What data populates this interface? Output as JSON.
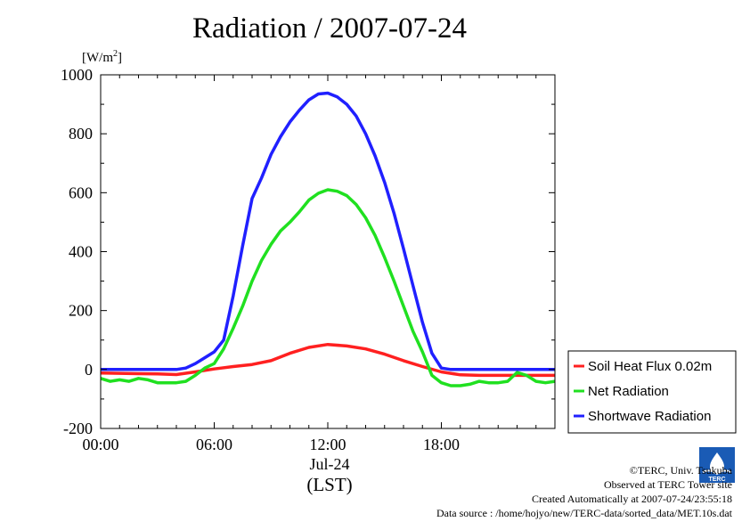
{
  "title": "Radiation / 2007-07-24",
  "unit_label": {
    "base": "[W/m",
    "sup": "2",
    "close": "]"
  },
  "date_label": "Jul-24",
  "time_zone_label": "(LST)",
  "footer": {
    "copyright": "©TERC, Univ. Tsukuba",
    "site": "Observed at TERC Tower site",
    "created": "Created Automatically at 2007-07-24/23:55:18",
    "source": "Data source : /home/hojyo/new/TERC-data/sorted_data/MET.10s.dat"
  },
  "logo_text": "TERC",
  "chart_data": {
    "type": "line",
    "title": "Radiation / 2007-07-24",
    "ylabel": "[W/m2]",
    "xlabel": "(LST)",
    "x_unit": "hours",
    "xlim": [
      0,
      24
    ],
    "ylim": [
      -200,
      1000
    ],
    "yticks": [
      1000,
      800,
      600,
      400,
      200,
      0,
      -200
    ],
    "ytick_labels": [
      "1000",
      "800",
      "600",
      "400",
      "200",
      "0",
      "-200"
    ],
    "xticks": [
      0,
      6,
      12,
      18
    ],
    "xtick_labels": [
      "00:00",
      "06:00",
      "12:00",
      "18:00"
    ],
    "grid": false,
    "legend_position": "right",
    "series": [
      {
        "name": "Soil Heat Flux 0.02m",
        "color": "#ff2020",
        "x": [
          0,
          1,
          2,
          3,
          4,
          5,
          6,
          7,
          8,
          9,
          10,
          11,
          12,
          13,
          14,
          15,
          16,
          17,
          18,
          19,
          20,
          21,
          22,
          23,
          24
        ],
        "y": [
          -12,
          -13,
          -14,
          -15,
          -17,
          -8,
          2,
          10,
          17,
          30,
          55,
          75,
          85,
          80,
          70,
          52,
          30,
          10,
          -8,
          -18,
          -20,
          -20,
          -20,
          -20,
          -20
        ]
      },
      {
        "name": "Net Radiation",
        "color": "#20e020",
        "x": [
          0,
          0.5,
          1,
          1.5,
          2,
          2.5,
          3,
          3.5,
          4,
          4.5,
          5,
          5.5,
          6,
          6.5,
          7,
          7.5,
          8,
          8.5,
          9,
          9.5,
          10,
          10.5,
          11,
          11.5,
          12,
          12.5,
          13,
          13.5,
          14,
          14.5,
          15,
          15.5,
          16,
          16.5,
          17,
          17.5,
          18,
          18.5,
          19,
          19.5,
          20,
          20.5,
          21,
          21.5,
          22,
          22.5,
          23,
          23.5,
          24
        ],
        "y": [
          -30,
          -40,
          -35,
          -40,
          -30,
          -35,
          -45,
          -45,
          -45,
          -40,
          -20,
          5,
          20,
          70,
          140,
          215,
          300,
          370,
          425,
          470,
          500,
          535,
          575,
          598,
          610,
          605,
          590,
          560,
          515,
          455,
          380,
          300,
          215,
          130,
          60,
          -20,
          -45,
          -55,
          -55,
          -50,
          -40,
          -45,
          -45,
          -40,
          -10,
          -20,
          -40,
          -45,
          -40
        ]
      },
      {
        "name": "Shortwave Radiation",
        "color": "#2020ff",
        "x": [
          0,
          1,
          2,
          3,
          4,
          4.5,
          5,
          5.5,
          6,
          6.5,
          7,
          7.5,
          8,
          8.5,
          9,
          9.5,
          10,
          10.5,
          11,
          11.5,
          12,
          12.5,
          13,
          13.5,
          14,
          14.5,
          15,
          15.5,
          16,
          16.5,
          17,
          17.5,
          18,
          18.5,
          19,
          20,
          21,
          22,
          23,
          24
        ],
        "y": [
          0,
          0,
          0,
          0,
          0,
          5,
          20,
          40,
          60,
          100,
          250,
          420,
          580,
          650,
          730,
          790,
          840,
          880,
          915,
          935,
          938,
          925,
          900,
          860,
          800,
          725,
          635,
          530,
          410,
          285,
          160,
          55,
          5,
          0,
          0,
          0,
          0,
          0,
          0,
          0
        ]
      }
    ]
  }
}
